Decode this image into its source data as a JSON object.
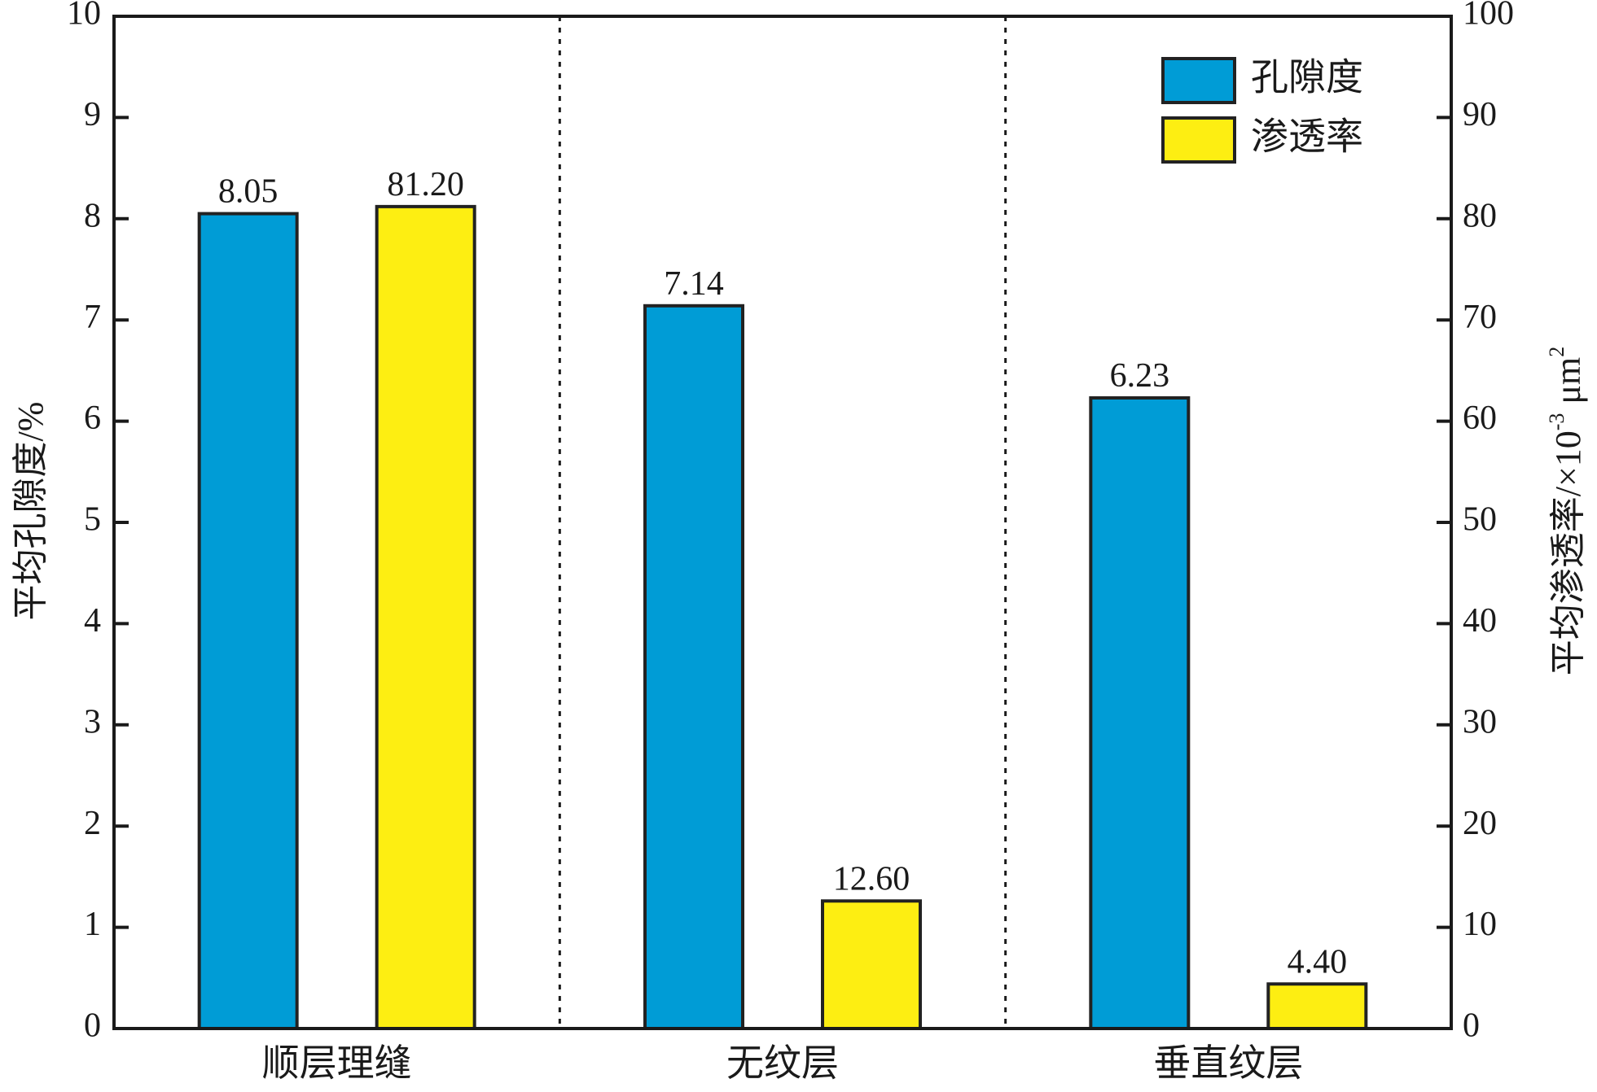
{
  "chart_data": {
    "type": "bar",
    "categories": [
      "顺层理缝",
      "无纹层",
      "垂直纹层"
    ],
    "series": [
      {
        "name": "孔隙度",
        "axis": "left",
        "values": [
          8.05,
          7.14,
          6.23
        ],
        "labels": [
          "8.05",
          "7.14",
          "6.23"
        ],
        "color": "#009cd6"
      },
      {
        "name": "渗透率",
        "axis": "right",
        "values": [
          81.2,
          12.6,
          4.4
        ],
        "labels": [
          "81.20",
          "12.60",
          "4.40"
        ],
        "color": "#fdee12"
      }
    ],
    "ylabel_left": "平均孔隙度/%",
    "ylabel_right_main": "平均渗透率/×10",
    "ylabel_right_sup1": "-3",
    "ylabel_right_unit": " μm",
    "ylabel_right_sup2": "2",
    "ylim_left": [
      0,
      10
    ],
    "ylim_right": [
      0,
      100
    ],
    "yticks_left": [
      "0",
      "1",
      "2",
      "3",
      "4",
      "5",
      "6",
      "7",
      "8",
      "9",
      "10"
    ],
    "yticks_right": [
      "0",
      "10",
      "20",
      "30",
      "40",
      "50",
      "60",
      "70",
      "80",
      "90",
      "100"
    ],
    "category_separators": "dotted",
    "legend_position": "top-right",
    "grid": false
  }
}
